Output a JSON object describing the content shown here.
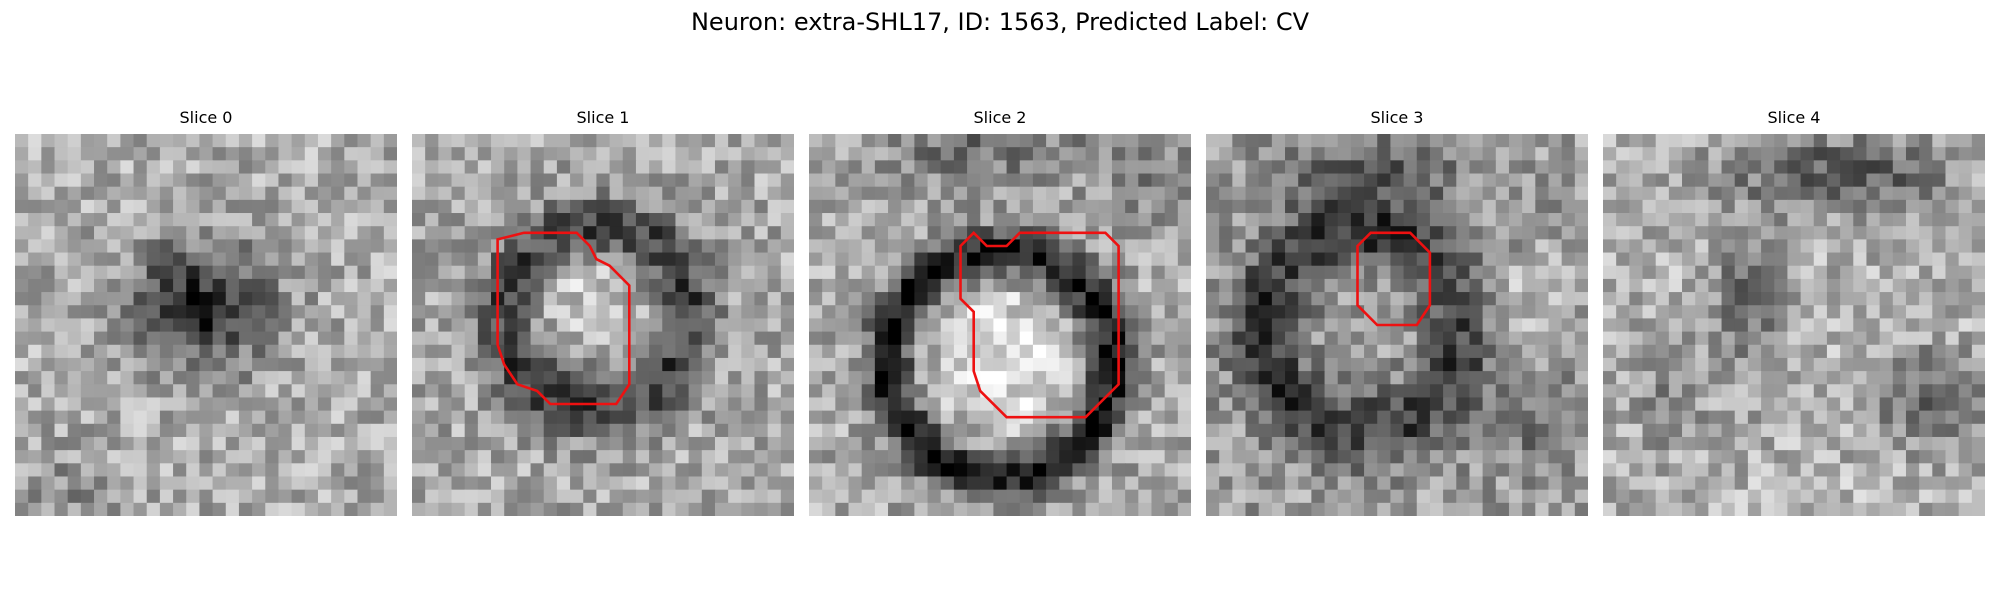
{
  "figure": {
    "title": "Neuron: extra-SHL17, ID: 1563, Predicted Label: CV"
  },
  "panels": [
    {
      "title": "Slice 0",
      "has_outline": false
    },
    {
      "title": "Slice 1",
      "has_outline": true
    },
    {
      "title": "Slice 2",
      "has_outline": true
    },
    {
      "title": "Slice 3",
      "has_outline": true
    },
    {
      "title": "Slice 4",
      "has_outline": false
    }
  ],
  "colors": {
    "outline": "#ee1111",
    "colormap": "grayscale"
  }
}
